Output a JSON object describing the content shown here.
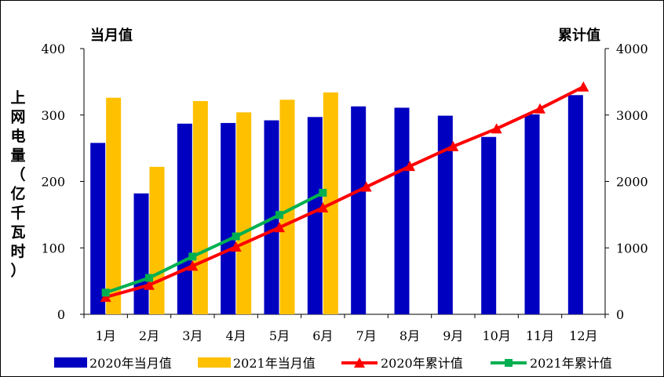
{
  "chart_data": {
    "type": "bar",
    "categories": [
      "1月",
      "2月",
      "3月",
      "4月",
      "5月",
      "6月",
      "7月",
      "8月",
      "9月",
      "10月",
      "11月",
      "12月"
    ],
    "left_axis_title": "当月值",
    "right_axis_title": "累计值",
    "ylabel": "上网电量（亿千瓦时）",
    "ylabel_chars": [
      "上",
      "网",
      "电",
      "量",
      "（",
      "亿",
      "千",
      "瓦",
      "时",
      "）"
    ],
    "ylim_left": [
      0,
      400
    ],
    "yticks_left": [
      0,
      100,
      200,
      300,
      400
    ],
    "ylim_right": [
      0,
      4000
    ],
    "yticks_right": [
      0,
      1000,
      2000,
      3000,
      4000
    ],
    "bar_series": [
      {
        "name": "2020年当月值",
        "color": "#0000C0",
        "values": [
          258,
          182,
          287,
          288,
          292,
          297,
          313,
          311,
          299,
          267,
          301,
          330
        ]
      },
      {
        "name": "2021年当月值",
        "color": "#FFC000",
        "values": [
          326,
          222,
          321,
          304,
          323,
          334
        ]
      }
    ],
    "line_series": [
      {
        "name": "2020年累计值",
        "color": "#FF0000",
        "marker": "triangle",
        "values": [
          258,
          440,
          727,
          1015,
          1307,
          1604,
          1917,
          2228,
          2527,
          2794,
          3095,
          3425
        ]
      },
      {
        "name": "2021年累计值",
        "color": "#00B050",
        "marker": "square",
        "values": [
          326,
          548,
          869,
          1173,
          1496,
          1830
        ]
      }
    ]
  }
}
